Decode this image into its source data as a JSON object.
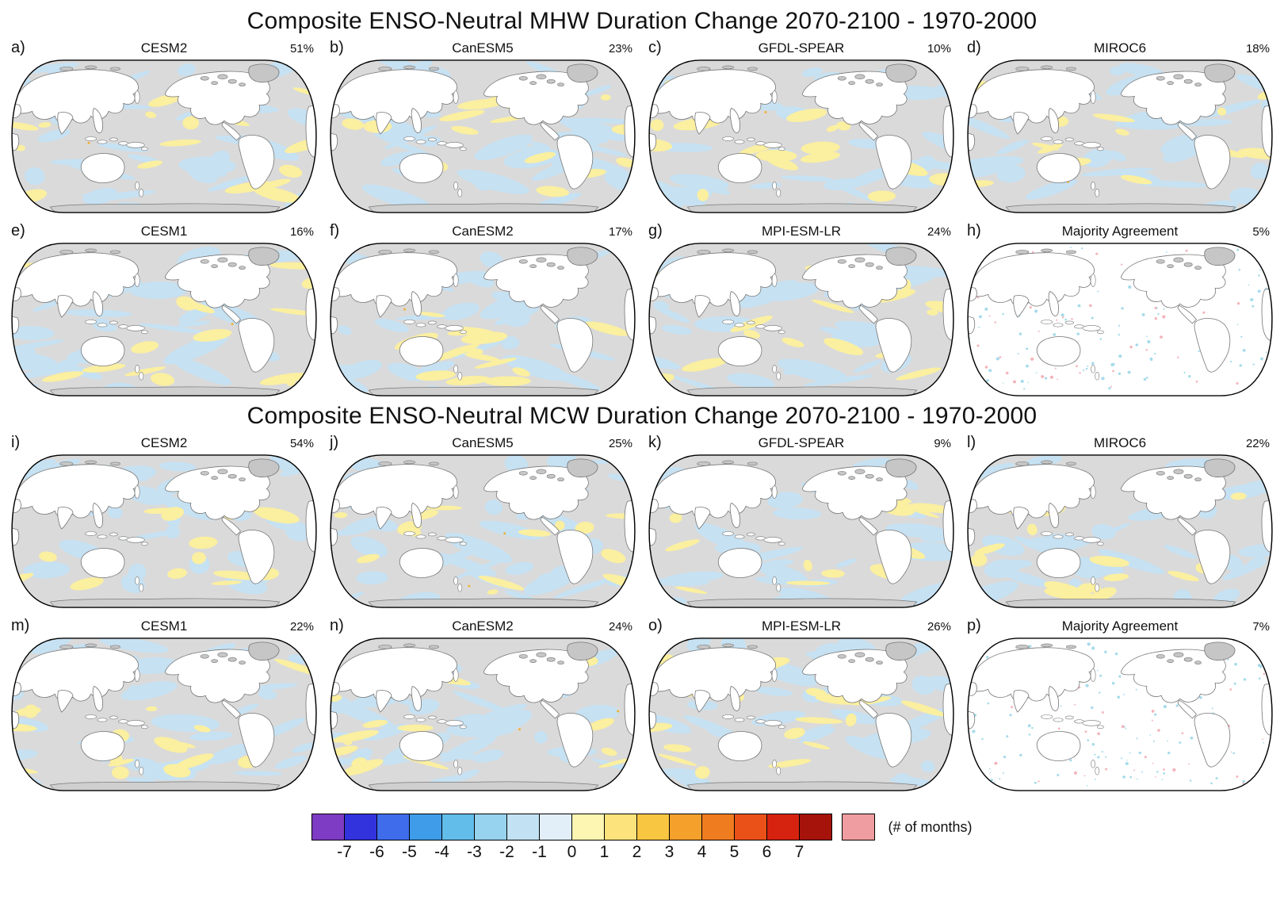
{
  "chart_data": {
    "type": "heatmap",
    "description": "Multi-model world maps of composite ENSO-neutral marine heatwave (MHW) and marine cold spell (MCW) duration change (2070-2100 minus 1970-2000), with percentage shown per panel and a shared colorbar in months.",
    "sections": [
      {
        "title": "Composite ENSO-Neutral MHW Duration Change 2070-2100 - 1970-2000",
        "panels": [
          {
            "label": "a)",
            "model": "CESM2",
            "percent": "51%",
            "kind": "model"
          },
          {
            "label": "b)",
            "model": "CanESM5",
            "percent": "23%",
            "kind": "model"
          },
          {
            "label": "c)",
            "model": "GFDL-SPEAR",
            "percent": "10%",
            "kind": "model"
          },
          {
            "label": "d)",
            "model": "MIROC6",
            "percent": "18%",
            "kind": "model"
          },
          {
            "label": "e)",
            "model": "CESM1",
            "percent": "16%",
            "kind": "model"
          },
          {
            "label": "f)",
            "model": "CanESM2",
            "percent": "17%",
            "kind": "model"
          },
          {
            "label": "g)",
            "model": "MPI-ESM-LR",
            "percent": "24%",
            "kind": "model"
          },
          {
            "label": "h)",
            "model": "Majority Agreement",
            "percent": "5%",
            "kind": "agreement"
          }
        ]
      },
      {
        "title": "Composite ENSO-Neutral MCW Duration Change 2070-2100 - 1970-2000",
        "panels": [
          {
            "label": "i)",
            "model": "CESM2",
            "percent": "54%",
            "kind": "model"
          },
          {
            "label": "j)",
            "model": "CanESM5",
            "percent": "25%",
            "kind": "model"
          },
          {
            "label": "k)",
            "model": "GFDL-SPEAR",
            "percent": "9%",
            "kind": "model"
          },
          {
            "label": "l)",
            "model": "MIROC6",
            "percent": "22%",
            "kind": "model"
          },
          {
            "label": "m)",
            "model": "CESM1",
            "percent": "22%",
            "kind": "model"
          },
          {
            "label": "n)",
            "model": "CanESM2",
            "percent": "24%",
            "kind": "model"
          },
          {
            "label": "o)",
            "model": "MPI-ESM-LR",
            "percent": "26%",
            "kind": "model"
          },
          {
            "label": "p)",
            "model": "Majority Agreement",
            "percent": "7%",
            "kind": "agreement"
          }
        ]
      }
    ],
    "colorbar": {
      "ticks": [
        "-7",
        "-6",
        "-5",
        "-4",
        "-3",
        "-2",
        "-1",
        "0",
        "1",
        "2",
        "3",
        "4",
        "5",
        "6",
        "7"
      ],
      "unit": "(# of months)",
      "colors": [
        "#7d3cc3",
        "#3333dd",
        "#3f6ceb",
        "#3f9ce9",
        "#63bdeb",
        "#97d2ee",
        "#c2e2f3",
        "#e2eff8",
        "#fdf6b2",
        "#fce37b",
        "#f9c642",
        "#f6a02c",
        "#f07c20",
        "#e95118",
        "#d5230f",
        "#a5130a"
      ],
      "overflow_color": "#ef9da0",
      "map_colors": {
        "ocean_base": "#dadada",
        "cool_patch": "#c6e1f2",
        "warm_patch": "#fbefa0",
        "agreement_cool_dot": "#a6dbea",
        "agreement_warm_dot": "#f3b4ba"
      }
    }
  }
}
